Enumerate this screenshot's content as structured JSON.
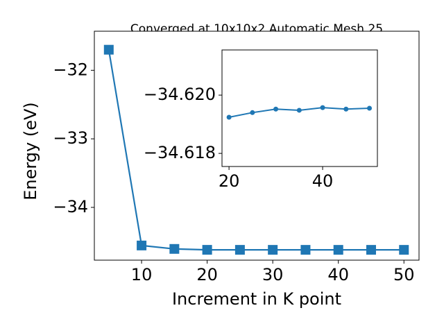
{
  "chart_data": [
    {
      "type": "line",
      "title": "Converged at 10x10x2 Automatic Mesh 25",
      "xlabel": "Increment in K point",
      "ylabel": "Energy (eV)",
      "x": [
        5,
        10,
        15,
        20,
        25,
        30,
        35,
        40,
        45,
        50
      ],
      "series": [
        {
          "color": "#1f77b4",
          "marker": "square",
          "values": [
            -31.7,
            -34.556,
            -34.606,
            -34.61924,
            -34.6194,
            -34.61952,
            -34.61948,
            -34.61957,
            -34.61952,
            -34.61955
          ]
        }
      ],
      "xlim": [
        2.8,
        52.3
      ],
      "ylim": [
        -34.77,
        -31.43
      ],
      "xticks": [
        10,
        20,
        30,
        40,
        50
      ],
      "yticks": [
        {
          "value": -34,
          "label": "−34"
        },
        {
          "value": -33,
          "label": "−33"
        },
        {
          "value": -32,
          "label": "−32"
        }
      ]
    },
    {
      "type": "line",
      "x": [
        20,
        25,
        30,
        35,
        40,
        45,
        50
      ],
      "series": [
        {
          "color": "#1f77b4",
          "marker": "circle",
          "values": [
            -34.61924,
            -34.6194,
            -34.61952,
            -34.61948,
            -34.61957,
            -34.61952,
            -34.61955
          ]
        }
      ],
      "xlim": [
        18.5,
        51.7
      ],
      "ylim": [
        -34.62155,
        -34.61755
      ],
      "y_inverted": true,
      "xticks": [
        20,
        40
      ],
      "yticks": [
        {
          "value": -34.62,
          "label": "−34.620"
        },
        {
          "value": -34.618,
          "label": "−34.618"
        }
      ]
    }
  ]
}
